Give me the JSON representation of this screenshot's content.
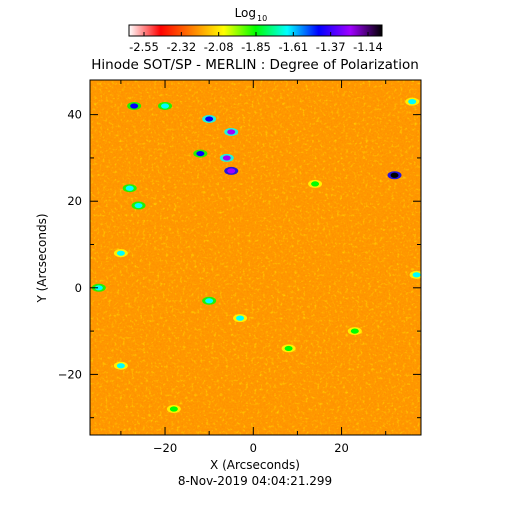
{
  "chart_data": {
    "type": "heatmap",
    "title": "Hinode SOT/SP - MERLIN : Degree of Polarization",
    "xlabel": "X (Arcseconds)",
    "ylabel": "Y (Arcseconds)",
    "footer": "8-Nov-2019 04:04:21.299",
    "xlim": [
      -37,
      38
    ],
    "ylim": [
      -34,
      48
    ],
    "x_ticks": [
      -20,
      0,
      20
    ],
    "y_ticks": [
      -20,
      0,
      20,
      40
    ],
    "colorbar": {
      "title_main": "Log",
      "title_sub": "10",
      "ticks": [
        "-2.55",
        "-2.32",
        "-2.08",
        "-1.85",
        "-1.61",
        "-1.37",
        "-1.14"
      ],
      "min": -2.55,
      "max": -1.14
    },
    "colormap": [
      "#ffffff",
      "#ff0000",
      "#ff8000",
      "#ffff00",
      "#00ff00",
      "#00ffff",
      "#0000ff",
      "#a000ff",
      "#000000"
    ],
    "background_level": -2.25,
    "features": [
      {
        "x": -5,
        "y": 36,
        "level": -1.35
      },
      {
        "x": -5,
        "y": 27,
        "level": -1.25
      },
      {
        "x": -6,
        "y": 30,
        "level": -1.4
      },
      {
        "x": -12,
        "y": 31,
        "level": -1.55
      },
      {
        "x": -10,
        "y": 39,
        "level": -1.5
      },
      {
        "x": 32,
        "y": 26,
        "level": -1.2
      },
      {
        "x": -27,
        "y": 42,
        "level": -1.55
      },
      {
        "x": -20,
        "y": 42,
        "level": -1.65
      },
      {
        "x": -28,
        "y": 23,
        "level": -1.65
      },
      {
        "x": -26,
        "y": 19,
        "level": -1.6
      },
      {
        "x": -30,
        "y": 8,
        "level": -1.75
      },
      {
        "x": -35,
        "y": 0,
        "level": -1.65
      },
      {
        "x": -10,
        "y": -3,
        "level": -1.65
      },
      {
        "x": -3,
        "y": -7,
        "level": -1.7
      },
      {
        "x": -30,
        "y": -18,
        "level": -1.75
      },
      {
        "x": 37,
        "y": 3,
        "level": -1.75
      },
      {
        "x": 36,
        "y": 43,
        "level": -1.75
      },
      {
        "x": 14,
        "y": 24,
        "level": -1.8
      },
      {
        "x": 23,
        "y": -10,
        "level": -1.8
      },
      {
        "x": 8,
        "y": -14,
        "level": -1.85
      },
      {
        "x": -18,
        "y": -28,
        "level": -1.85
      }
    ]
  }
}
